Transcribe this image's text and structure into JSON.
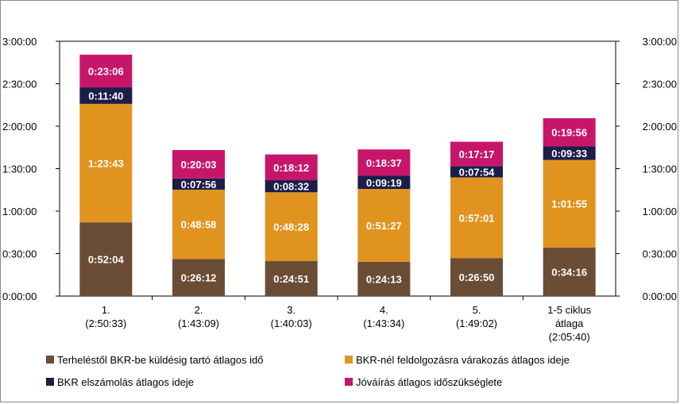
{
  "chart_data": {
    "type": "bar",
    "stacked": true,
    "y_format": "h:mm:ss",
    "ylim": [
      "0:00:00",
      "3:00:00"
    ],
    "yticks": [
      "0:00:00",
      "0:30:00",
      "1:00:00",
      "1:30:00",
      "2:00:00",
      "2:30:00",
      "3:00:00"
    ],
    "secondary_y_axis": true,
    "grid": false,
    "legend_position": "bottom",
    "categories": [
      [
        "1.",
        "(2:50:33)"
      ],
      [
        "2.",
        "(1:43:09)"
      ],
      [
        "3.",
        "(1:40:03)"
      ],
      [
        "4.",
        "(1:43:34)"
      ],
      [
        "5.",
        "(1:49:02)"
      ],
      [
        "1-5 ciklus",
        "átlaga",
        "(2:05:40)"
      ]
    ],
    "series": [
      {
        "name": "Terheléstől BKR-be küldésig tartó átlagos idő",
        "color": "#6b4c35",
        "values": [
          "0:52:04",
          "0:26:12",
          "0:24:51",
          "0:24:13",
          "0:26:50",
          "0:34:16"
        ]
      },
      {
        "name": "BKR-nél feldolgozásra várakozás átlagos ideje",
        "color": "#e0941f",
        "values": [
          "1:23:43",
          "0:48:58",
          "0:48:28",
          "0:51:27",
          "0:57:01",
          "1:01:55"
        ]
      },
      {
        "name": "BKR elszámolás átlagos ideje",
        "color": "#1c1d4a",
        "values": [
          "0:11:40",
          "0:07:56",
          "0:08:32",
          "0:09:19",
          "0:07:54",
          "0:09:33"
        ]
      },
      {
        "name": "Jóváírás átlagos időszükséglete",
        "color": "#c7166a",
        "values": [
          "0:23:06",
          "0:20:03",
          "0:18:12",
          "0:18:37",
          "0:17:17",
          "0:19:56"
        ]
      }
    ]
  }
}
